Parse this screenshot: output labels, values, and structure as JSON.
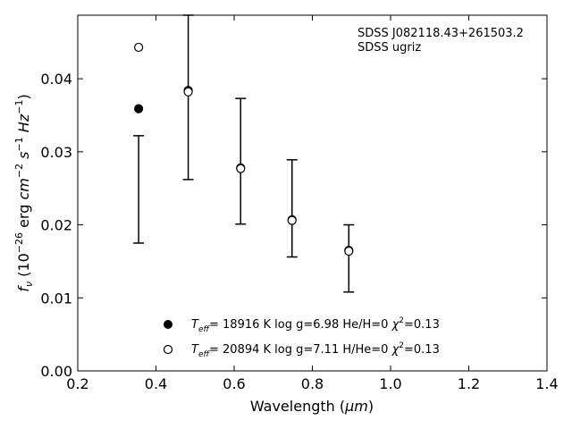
{
  "chart_data": {
    "type": "scatter",
    "title": "",
    "xlabel": "Wavelength (",
    "xlabel_unit": "μm",
    "xlabel_close": ")",
    "ylabel_prefix": "f",
    "ylabel_sub": "ν",
    "ylabel_units_open": " (10",
    "ylabel_exp": "−26",
    "ylabel_erg": " erg ",
    "ylabel_cm": "cm",
    "ylabel_cm_exp": "−2",
    "ylabel_s": " s",
    "ylabel_s_exp": "−1",
    "ylabel_hz": " Hz",
    "ylabel_hz_exp": "−1",
    "ylabel_close": ")",
    "xlim": [
      0.2,
      1.4
    ],
    "ylim": [
      0.0,
      0.0487
    ],
    "xticks": [
      0.2,
      0.4,
      0.6,
      0.8,
      1.0,
      1.2,
      1.4
    ],
    "xtick_labels": [
      "0.2",
      "0.4",
      "0.6",
      "0.8",
      "1.0",
      "1.2",
      "1.4"
    ],
    "yticks": [
      0.0,
      0.01,
      0.02,
      0.03,
      0.04
    ],
    "ytick_labels": [
      "0.00",
      "0.01",
      "0.02",
      "0.03",
      "0.04"
    ],
    "grid": false,
    "annotations": [
      "SDSS J082118.43+261503.2",
      "SDSS ugriz"
    ],
    "observed": {
      "x": [
        0.3557,
        0.4825,
        0.6166,
        0.748,
        0.8932
      ],
      "y": [
        0.0248,
        0.0385,
        0.0287,
        0.0222,
        0.0154
      ],
      "err_low": [
        0.0175,
        0.0262,
        0.0201,
        0.0156,
        0.0108
      ],
      "err_high": [
        0.0322,
        0.0487,
        0.0373,
        0.0289,
        0.02
      ]
    },
    "series": [
      {
        "marker": "filled-circle",
        "x": [
          0.3557,
          0.4825,
          0.6166,
          0.748,
          0.8932
        ],
        "y": [
          0.0359,
          0.0384,
          0.0278,
          0.0207,
          0.0165
        ],
        "legend": {
          "t": "T",
          "t_sub": "eff",
          "text": "= 18916 K  log g=6.98  He/H=0  ",
          "chi": "χ",
          "chi_exp": "2",
          "chi_val": "=0.13"
        }
      },
      {
        "marker": "open-circle",
        "x": [
          0.3557,
          0.4825,
          0.6166,
          0.748,
          0.8932
        ],
        "y": [
          0.0443,
          0.0382,
          0.0277,
          0.0206,
          0.0164
        ],
        "legend": {
          "t": "T",
          "t_sub": "eff",
          "text": "= 20894 K  log g=7.11  H/He=0  ",
          "chi": "χ",
          "chi_exp": "2",
          "chi_val": "=0.13"
        }
      }
    ]
  }
}
